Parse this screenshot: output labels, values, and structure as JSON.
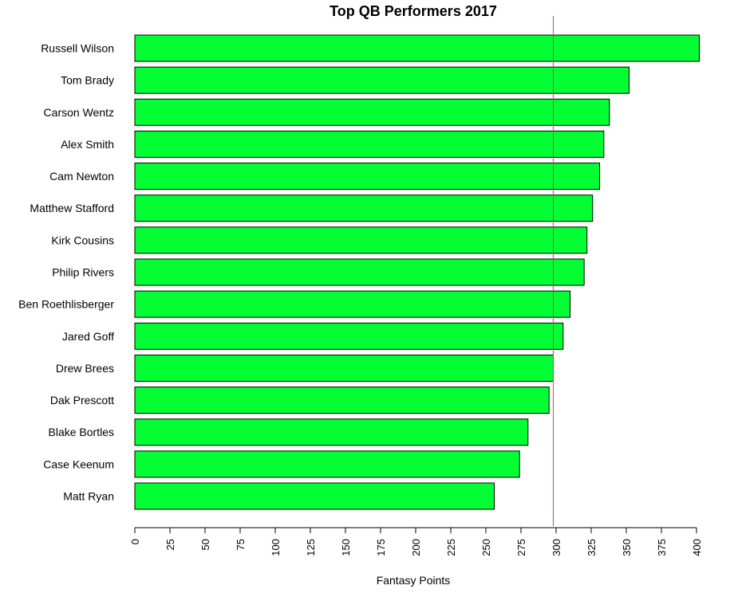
{
  "chart_data": {
    "type": "bar",
    "orientation": "horizontal",
    "title": "Top QB Performers 2017",
    "xlabel": "Fantasy Points",
    "ylabel": "",
    "xlim": [
      0,
      400
    ],
    "xticks": [
      "0",
      "25",
      "50",
      "75",
      "100",
      "125",
      "150",
      "175",
      "200",
      "225",
      "250",
      "275",
      "300",
      "325",
      "350",
      "375",
      "400"
    ],
    "categories": [
      "Russell Wilson",
      "Tom Brady",
      "Carson Wentz",
      "Alex Smith",
      "Cam Newton",
      "Matthew Stafford",
      "Kirk Cousins",
      "Philip Rivers",
      "Ben Roethlisberger",
      "Jared Goff",
      "Drew Brees",
      "Dak Prescott",
      "Blake Bortles",
      "Case Keenum",
      "Matt Ryan"
    ],
    "values": [
      402,
      352,
      338,
      334,
      331,
      326,
      322,
      320,
      310,
      305,
      298,
      295,
      280,
      274,
      256
    ],
    "reference_line": 298,
    "bar_color": "#00ff33",
    "bar_border_color": "#000000",
    "reference_line_color": "#c0504d",
    "grid": false
  }
}
